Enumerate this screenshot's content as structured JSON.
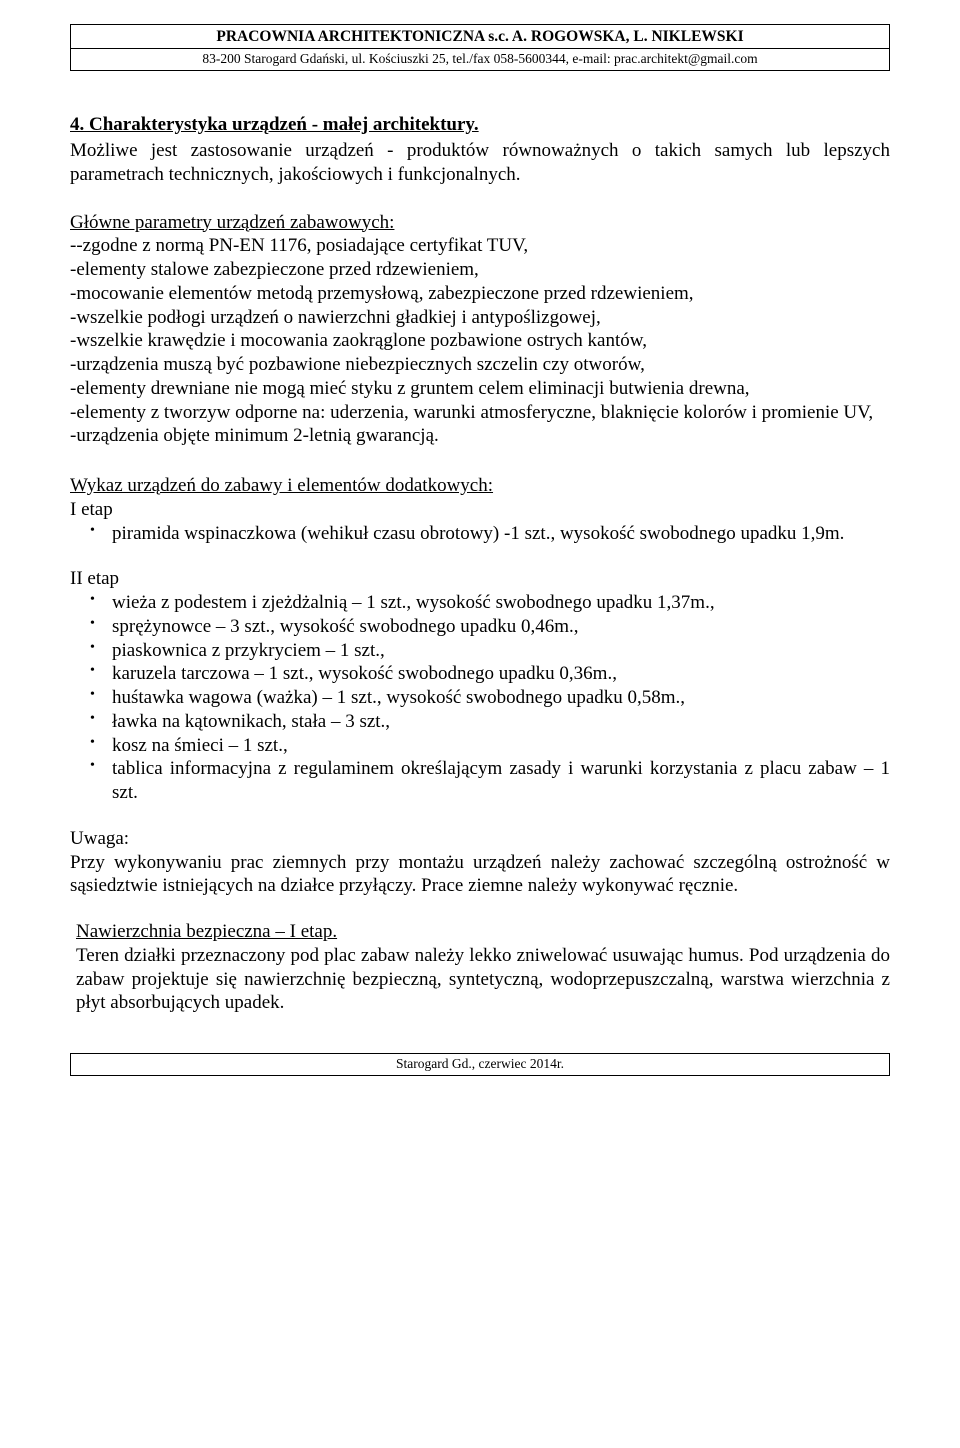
{
  "header": {
    "line1": "PRACOWNIA ARCHITEKTONICZNA s.c. A. ROGOWSKA, L. NIKLEWSKI",
    "line2": "83-200 Starogard Gdański, ul. Kościuszki 25, tel./fax 058-5600344, e-mail: prac.architekt@gmail.com"
  },
  "section4": {
    "title": "4. Charakterystyka urządzeń - małej architektury.",
    "intro": "Możliwe jest zastosowanie urządzeń - produktów równoważnych o takich samych lub lepszych parametrach technicznych, jakościowych i funkcjonalnych."
  },
  "params": {
    "heading": "Główne parametry urządzeń zabawowych:",
    "lines": [
      "--zgodne z normą PN-EN 1176, posiadające certyfikat TUV,",
      "-elementy stalowe zabezpieczone przed rdzewieniem,",
      "-mocowanie elementów metodą przemysłową, zabezpieczone przed rdzewieniem,",
      "-wszelkie podłogi urządzeń o nawierzchni gładkiej i antypoślizgowej,",
      "-wszelkie krawędzie i mocowania zaokrąglone pozbawione ostrych kantów,",
      "-urządzenia muszą być pozbawione niebezpiecznych szczelin czy otworów,",
      "-elementy drewniane nie mogą mieć styku z gruntem celem eliminacji butwienia drewna,",
      "-elementy z tworzyw odporne na: uderzenia, warunki atmosferyczne, blaknięcie kolorów i promienie UV,",
      "-urządzenia objęte  minimum 2-letnią gwarancją."
    ]
  },
  "wykaz": {
    "heading": "Wykaz urządzeń do zabawy i elementów dodatkowych:",
    "etap1_label": "I etap",
    "etap1_items": [
      "piramida wspinaczkowa (wehikuł czasu obrotowy) -1 szt., wysokość swobodnego upadku 1,9m."
    ],
    "etap2_label": "II etap",
    "etap2_items": [
      "wieża z podestem i zjeżdżalnią – 1 szt., wysokość swobodnego upadku 1,37m.,",
      "sprężynowce – 3 szt., wysokość swobodnego upadku 0,46m.,",
      "piaskownica z przykryciem  – 1 szt.,",
      "karuzela tarczowa  – 1 szt., wysokość swobodnego upadku 0,36m.,",
      "huśtawka wagowa (ważka) – 1 szt., wysokość swobodnego upadku 0,58m.,",
      "ławka na kątownikach, stała  – 3 szt.,",
      "kosz na śmieci  – 1 szt.,",
      "tablica informacyjna z regulaminem określającym zasady i warunki korzystania z placu zabaw – 1 szt."
    ]
  },
  "uwaga": {
    "label": "Uwaga:",
    "text": "Przy wykonywaniu prac ziemnych przy montażu urządzeń należy zachować szczególną ostrożność w sąsiedztwie istniejących na działce przyłączy. Prace ziemne należy wykonywać ręcznie."
  },
  "nawierzchnia": {
    "heading": "Nawierzchnia bezpieczna – I etap.",
    "text": "Teren działki przeznaczony pod plac zabaw należy lekko zniwelować usuwając humus. Pod urządzenia do zabaw projektuje się nawierzchnię bezpieczną, syntetyczną, wodoprzepuszczalną, warstwa wierzchnia z płyt absorbujących  upadek."
  },
  "footer": "Starogard Gd., czerwiec 2014r."
}
